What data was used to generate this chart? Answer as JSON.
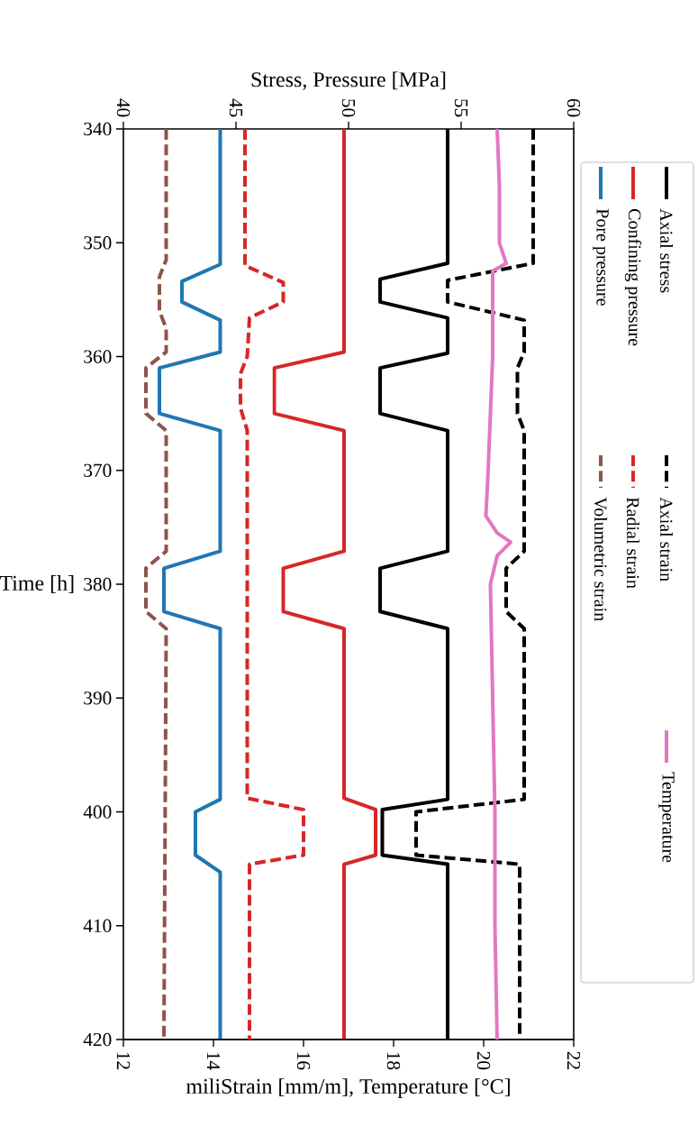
{
  "chart_data": {
    "type": "line",
    "xlabel": "miliStrain [mm/m], Temperature [°C]",
    "x2label": "Stress, Pressure [MPa]",
    "ylabel": "Time [h]",
    "xlim": [
      12,
      22
    ],
    "xticks": [
      12,
      14,
      16,
      18,
      20,
      22
    ],
    "x2lim": [
      40,
      60
    ],
    "x2ticks": [
      40,
      45,
      50,
      55,
      60
    ],
    "ylim": [
      420,
      340
    ],
    "yticks": [
      340,
      350,
      360,
      370,
      380,
      390,
      400,
      410,
      420
    ],
    "legend": "right",
    "series": [
      {
        "name": "Axial stress",
        "color": "#000000",
        "line_style": "solid",
        "axis": "x2",
        "values": [
          340,
          351.8,
          353.2,
          355.2,
          356.6,
          359.7,
          361,
          365,
          366.5,
          377.1,
          378.6,
          382.4,
          383.9,
          398.9,
          399.8,
          403.8,
          404.6,
          420
        ],
        "x": [
          54.4,
          54.4,
          51.4,
          51.4,
          54.4,
          54.4,
          51.4,
          51.4,
          54.4,
          54.4,
          51.4,
          51.4,
          54.4,
          54.4,
          51.5,
          51.5,
          54.4,
          54.4
        ]
      },
      {
        "name": "Confining pressure",
        "color": "#d62728",
        "line_style": "solid",
        "axis": "x2",
        "values": [
          340,
          359.6,
          361,
          365,
          366.5,
          377.1,
          378.6,
          382.4,
          383.9,
          398.8,
          399.8,
          403.8,
          404.6,
          420
        ],
        "x": [
          49.8,
          49.8,
          46.7,
          46.7,
          49.8,
          49.8,
          47.1,
          47.1,
          49.8,
          49.8,
          51.2,
          51.2,
          49.8,
          49.8
        ]
      },
      {
        "name": "Pore pressure",
        "color": "#1f77b4",
        "line_style": "solid",
        "axis": "x2",
        "values": [
          340,
          351.9,
          353.4,
          355.2,
          356.8,
          359.6,
          361,
          365,
          366.5,
          377.1,
          378.6,
          382.4,
          383.9,
          398.9,
          400,
          403.8,
          405.3,
          420
        ],
        "x": [
          44.3,
          44.3,
          42.6,
          42.6,
          44.3,
          44.3,
          41.6,
          41.6,
          44.3,
          44.3,
          41.8,
          41.8,
          44.3,
          44.3,
          43.2,
          43.2,
          44.3,
          44.3
        ]
      },
      {
        "name": "Axial strain",
        "color": "#000000",
        "line_style": "dashed",
        "values": [
          340,
          351.8,
          353.3,
          355.2,
          356.8,
          359.6,
          361,
          365,
          366.5,
          377.1,
          378.6,
          382.4,
          383.9,
          398.9,
          400,
          403.8,
          404.6,
          420
        ],
        "x": [
          21.1,
          21.1,
          19.2,
          19.2,
          20.9,
          20.9,
          20.75,
          20.75,
          20.9,
          20.9,
          20.5,
          20.5,
          20.9,
          20.9,
          18.5,
          18.5,
          20.8,
          20.8
        ]
      },
      {
        "name": "Radial strain",
        "color": "#d62728",
        "line_style": "dashed",
        "values": [
          340,
          352,
          353.5,
          355.2,
          356.6,
          360,
          361.5,
          364.5,
          366.5,
          398.8,
          399.8,
          403.8,
          404.6,
          420
        ],
        "x": [
          14.7,
          14.7,
          15.55,
          15.55,
          14.8,
          14.75,
          14.6,
          14.6,
          14.75,
          14.75,
          16.0,
          16.0,
          14.8,
          14.8
        ]
      },
      {
        "name": "Volumetric strain",
        "color": "#8c564b",
        "line_style": "dashed",
        "values": [
          340,
          351.5,
          353,
          356,
          357.5,
          359.6,
          361,
          365,
          366.5,
          377.1,
          378.6,
          382.4,
          383.9,
          420
        ],
        "x": [
          12.95,
          12.95,
          12.8,
          12.8,
          12.95,
          12.95,
          12.5,
          12.5,
          12.95,
          12.95,
          12.5,
          12.5,
          12.95,
          12.9
        ]
      },
      {
        "name": "Temperature",
        "color": "#e377c2",
        "line_style": "solid",
        "values": [
          340,
          345,
          350,
          351.8,
          352.5,
          360,
          365,
          370,
          374,
          375.5,
          376.3,
          377.5,
          380,
          390,
          400,
          410,
          420
        ],
        "x": [
          20.3,
          20.35,
          20.35,
          20.5,
          20.2,
          20.2,
          20.15,
          20.1,
          20.05,
          20.3,
          20.6,
          20.3,
          20.15,
          20.2,
          20.25,
          20.25,
          20.3
        ]
      }
    ]
  }
}
